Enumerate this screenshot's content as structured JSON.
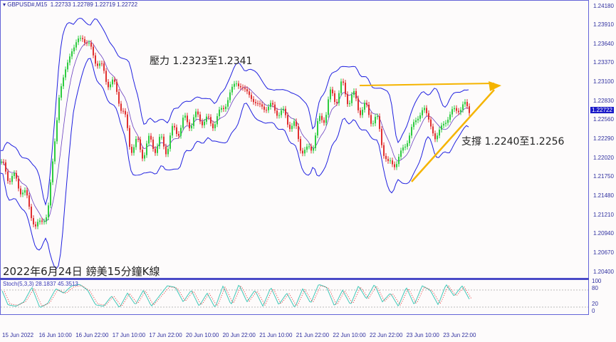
{
  "header": {
    "symbol": "GBPUSD#,M15",
    "ohlc": "1.22733 1.22789 1.22719 1.22722"
  },
  "price_axis": [
    "1.24180",
    "1.23910",
    "1.23640",
    "1.23370",
    "1.23100",
    "1.22830",
    "1.22560",
    "1.22290",
    "1.22020",
    "1.21750",
    "1.21480",
    "1.21210",
    "1.20940",
    "1.20670",
    "1.20400"
  ],
  "current_price": "1.22722",
  "stoch_axis": [
    "100",
    "80",
    "20",
    "0"
  ],
  "stoch_label": "Stoch(5,3,3) 28.1837 45.3513",
  "time_axis": [
    "15 Jun 2022",
    "16 Jun 10:00",
    "16 Jun 22:00",
    "17 Jun 10:00",
    "17 Jun 22:00",
    "20 Jun 10:00",
    "20 Jun 22:00",
    "21 Jun 10:00",
    "21 Jun 22:00",
    "22 Jun 10:00",
    "22 Jun 22:00",
    "23 Jun 10:00",
    "23 Jun 22:00"
  ],
  "annotations": {
    "resistance": "壓力 1.2323至1.2341",
    "support": "支撐 1.2240至1.2256",
    "title": "2022年6月24日 鎊美15分鐘K線"
  },
  "colors": {
    "bull": "#2ecc40",
    "bear": "#e03030",
    "band": "#2020e0",
    "trend": "#f5b400",
    "stoch_main": "#40c8b8",
    "stoch_signal": "#e03030"
  },
  "closes": [
    1.2188,
    1.2173,
    1.2153,
    1.2102,
    1.2122,
    1.2294,
    1.2355,
    1.2375,
    1.2345,
    1.2315,
    1.2294,
    1.2223,
    1.2213,
    1.2223,
    1.2218,
    1.2244,
    1.2254,
    1.2259,
    1.2249,
    1.2274,
    1.231,
    1.2294,
    1.2274,
    1.2274,
    1.2264,
    1.2244,
    1.2203,
    1.2244,
    1.2284,
    1.2299,
    1.2284,
    1.2269,
    1.2254,
    1.2188,
    1.2203,
    1.2244,
    1.2274,
    1.2229,
    1.2259,
    1.2274,
    1.2272
  ],
  "stoch": [
    85,
    20,
    15,
    30,
    80,
    10,
    25,
    75,
    60,
    85,
    90,
    70,
    20,
    15,
    50,
    10,
    60,
    20,
    70,
    15,
    50,
    85,
    80,
    30,
    70,
    15,
    60,
    10,
    85,
    20,
    90,
    30,
    70,
    15,
    80,
    20,
    60,
    10,
    75,
    25,
    90,
    80,
    15,
    70,
    20,
    85,
    40,
    90,
    30,
    60,
    15,
    80,
    20,
    85,
    70,
    20,
    90,
    50,
    85,
    35
  ]
}
